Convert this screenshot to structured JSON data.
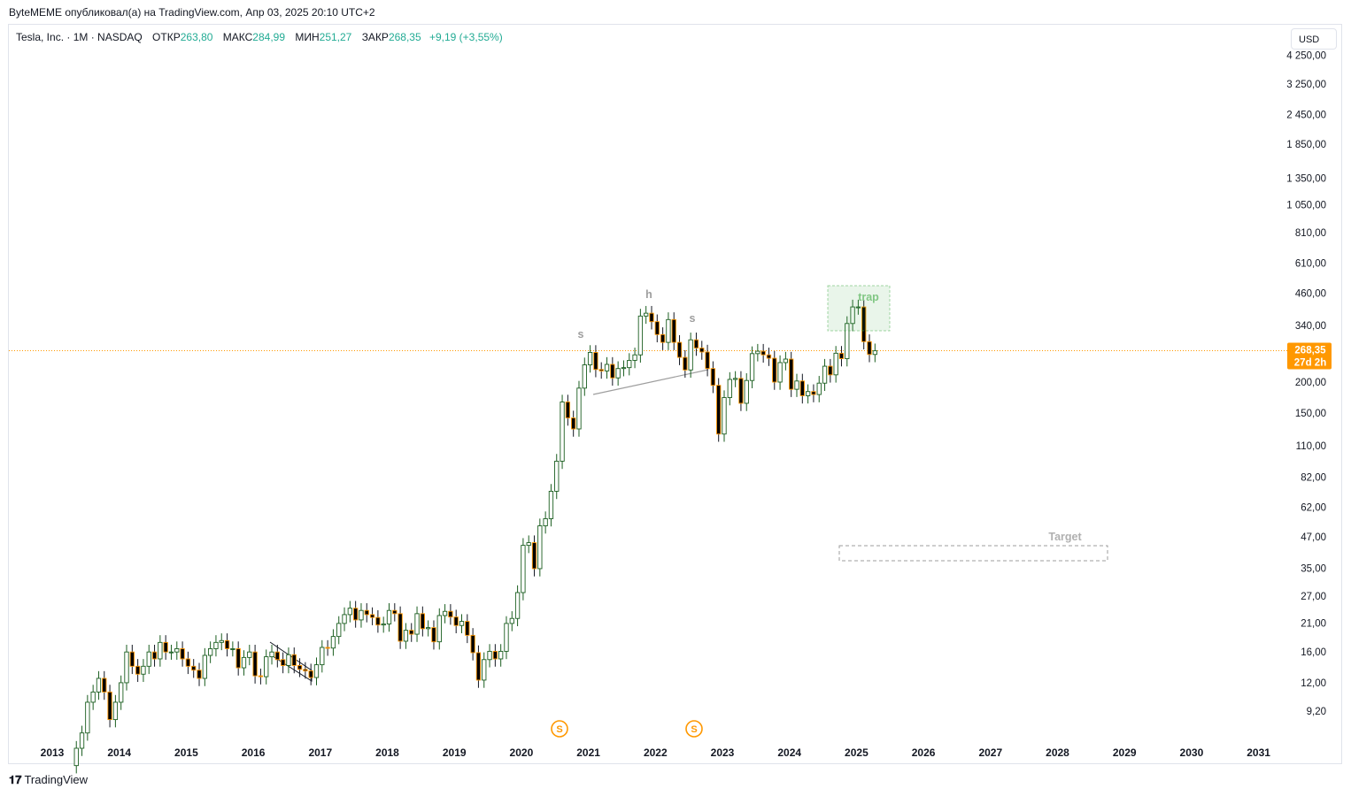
{
  "header": {
    "published_by": "ByteMEME опубликовал(а) на TradingView.com, Апр 03, 2025 20:10 UTC+2"
  },
  "legend": {
    "symbol": "Tesla, Inc. · 1M · NASDAQ",
    "open_label": "ОТКР",
    "open_value": "263,80",
    "high_label": "МАКС",
    "high_value": "284,99",
    "low_label": "МИН",
    "low_value": "251,27",
    "close_label": "ЗАКР",
    "close_value": "268,35",
    "change": "+9,19 (+3,55%)"
  },
  "currency": "USD",
  "colors": {
    "up_body": "#ffffff",
    "up_border": "#1b5e20",
    "down_body": "#000000",
    "down_wick": "#ff9800",
    "price_line": "#ff9800",
    "trap_box": "#4caf50",
    "annotation_gray": "#9e9e9e"
  },
  "chart_data": {
    "type": "candlestick",
    "y_scale": "log",
    "y_ticks": [
      "4 250,00",
      "3 250,00",
      "2 450,00",
      "1 850,00",
      "1 350,00",
      "1 050,00",
      "810,00",
      "610,00",
      "460,00",
      "340,00",
      "200,00",
      "150,00",
      "110,00",
      "82,00",
      "62,00",
      "47,00",
      "35,00",
      "27,00",
      "21,00",
      "16,00",
      "12,00",
      "9,20"
    ],
    "x_ticks": [
      "2013",
      "2014",
      "2015",
      "2016",
      "2017",
      "2018",
      "2019",
      "2020",
      "2021",
      "2022",
      "2023",
      "2024",
      "2025",
      "2026",
      "2027",
      "2028",
      "2029",
      "2030",
      "2031"
    ],
    "last_price": "268,35",
    "countdown": "27d 2h",
    "annotations": {
      "left_shoulder": "s",
      "head": "h",
      "right_shoulder": "s",
      "trap": "trap",
      "target": "Target"
    },
    "event_marker": "S"
  },
  "footer": {
    "brand": "TradingView"
  }
}
